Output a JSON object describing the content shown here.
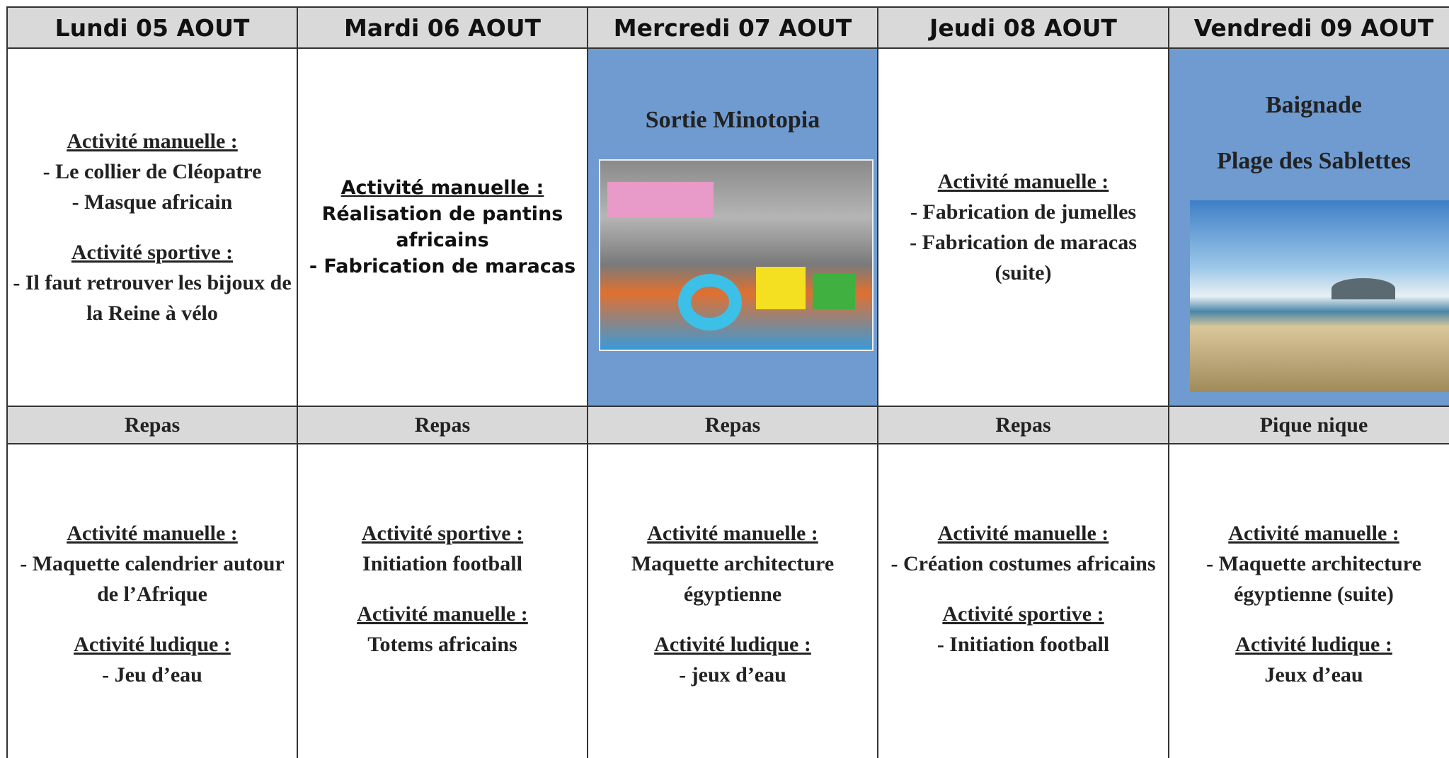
{
  "days": [
    {
      "header": "Lundi 05 AOUT",
      "morning": {
        "sections": [
          {
            "heading": "Activité manuelle  :",
            "lines": [
              "- Le collier de Cléopatre",
              "- Masque africain"
            ]
          },
          {
            "heading": "Activité sportive  :",
            "lines": [
              "- Il faut retrouver les bijoux de la Reine à vélo"
            ]
          }
        ]
      },
      "lunch": "Repas",
      "afternoon": {
        "sections": [
          {
            "heading": "Activité manuelle  :",
            "lines": [
              "- Maquette calendrier autour de l’Afrique"
            ]
          },
          {
            "heading": "Activité ludique  :",
            "lines": [
              "- Jeu d’eau"
            ]
          }
        ]
      }
    },
    {
      "header": "Mardi 06 AOUT",
      "morning": {
        "sections": [
          {
            "heading": "Activité manuelle :",
            "lines": [
              "Réalisation de pantins africains",
              "- Fabrication de maracas"
            ]
          }
        ]
      },
      "lunch": "Repas",
      "afternoon": {
        "sections": [
          {
            "heading": "Activité sportive  :",
            "lines": [
              "Initiation football"
            ]
          },
          {
            "heading": "Activité manuelle  :",
            "lines": [
              "Totems africains"
            ]
          }
        ]
      }
    },
    {
      "header": "Mercredi 07 AOUT",
      "morning": {
        "titles": [
          "Sortie Minotopia"
        ],
        "sections": []
      },
      "lunch": "Repas",
      "afternoon": {
        "sections": [
          {
            "heading": "Activité manuelle  :",
            "lines": [
              "Maquette architecture égyptienne"
            ]
          },
          {
            "heading": "Activité ludique  :",
            "lines": [
              "- jeux d’eau"
            ]
          }
        ]
      }
    },
    {
      "header": "Jeudi 08 AOUT",
      "morning": {
        "sections": [
          {
            "heading": "Activité manuelle  :",
            "lines": [
              "- Fabrication de jumelles",
              "- Fabrication de maracas (suite)"
            ]
          }
        ]
      },
      "lunch": "Repas",
      "afternoon": {
        "sections": [
          {
            "heading": "Activité manuelle  :",
            "lines": [
              "- Création costumes africains"
            ]
          },
          {
            "heading": "Activité sportive  :",
            "lines": [
              "- Initiation football"
            ]
          }
        ]
      }
    },
    {
      "header": "Vendredi 09 AOUT",
      "morning": {
        "titles": [
          "Baignade",
          "Plage des Sablettes"
        ],
        "sections": []
      },
      "lunch": "Pique nique",
      "afternoon": {
        "sections": [
          {
            "heading": "Activité manuelle  :",
            "lines": [
              "- Maquette architecture égyptienne (suite)"
            ]
          },
          {
            "heading": "Activité ludique  :",
            "lines": [
              "Jeux d’eau"
            ]
          }
        ]
      }
    }
  ]
}
